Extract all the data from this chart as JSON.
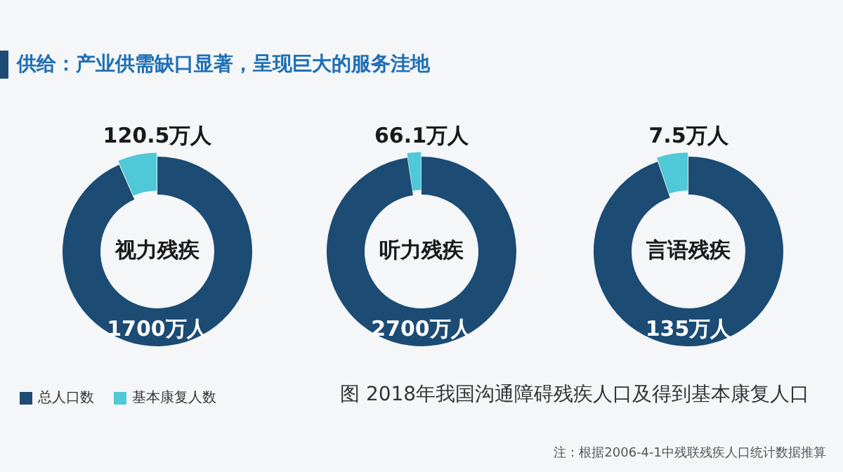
{
  "chart_data": [
    {
      "type": "donut",
      "title": "视力残疾",
      "categories": [
        "总人口数",
        "基本康复人数"
      ],
      "values": [
        1700,
        120.5
      ],
      "colors": [
        "#1c4b74",
        "#4fc8d8"
      ],
      "value_labels": [
        "1700万人",
        "120.5万人"
      ],
      "legend": "bottom left",
      "annotations": [
        "供给：产业供需缺口显著，呈现巨大的服务洼地",
        "图 2018年我国沟通障碍残疾人口及得到基本康复人口",
        "注：根据2006-4-1中残联残疾人口统计数据推算"
      ]
    },
    {
      "type": "donut",
      "title": "听力残疾",
      "categories": [
        null,
        null
      ],
      "values": [
        2700,
        66.1
      ],
      "colors": [
        "#1c4b74",
        "#4fc8d8"
      ],
      "value_labels": [
        "2700万人",
        "66.1万人"
      ]
    },
    {
      "type": "donut",
      "title": "言语残疾",
      "categories": [
        null,
        null
      ],
      "values": [
        135,
        7.5
      ],
      "colors": [
        "#1c4b74",
        "#4fc8d8"
      ],
      "value_labels": [
        "135万人",
        "7.5万人"
      ]
    }
  ]
}
